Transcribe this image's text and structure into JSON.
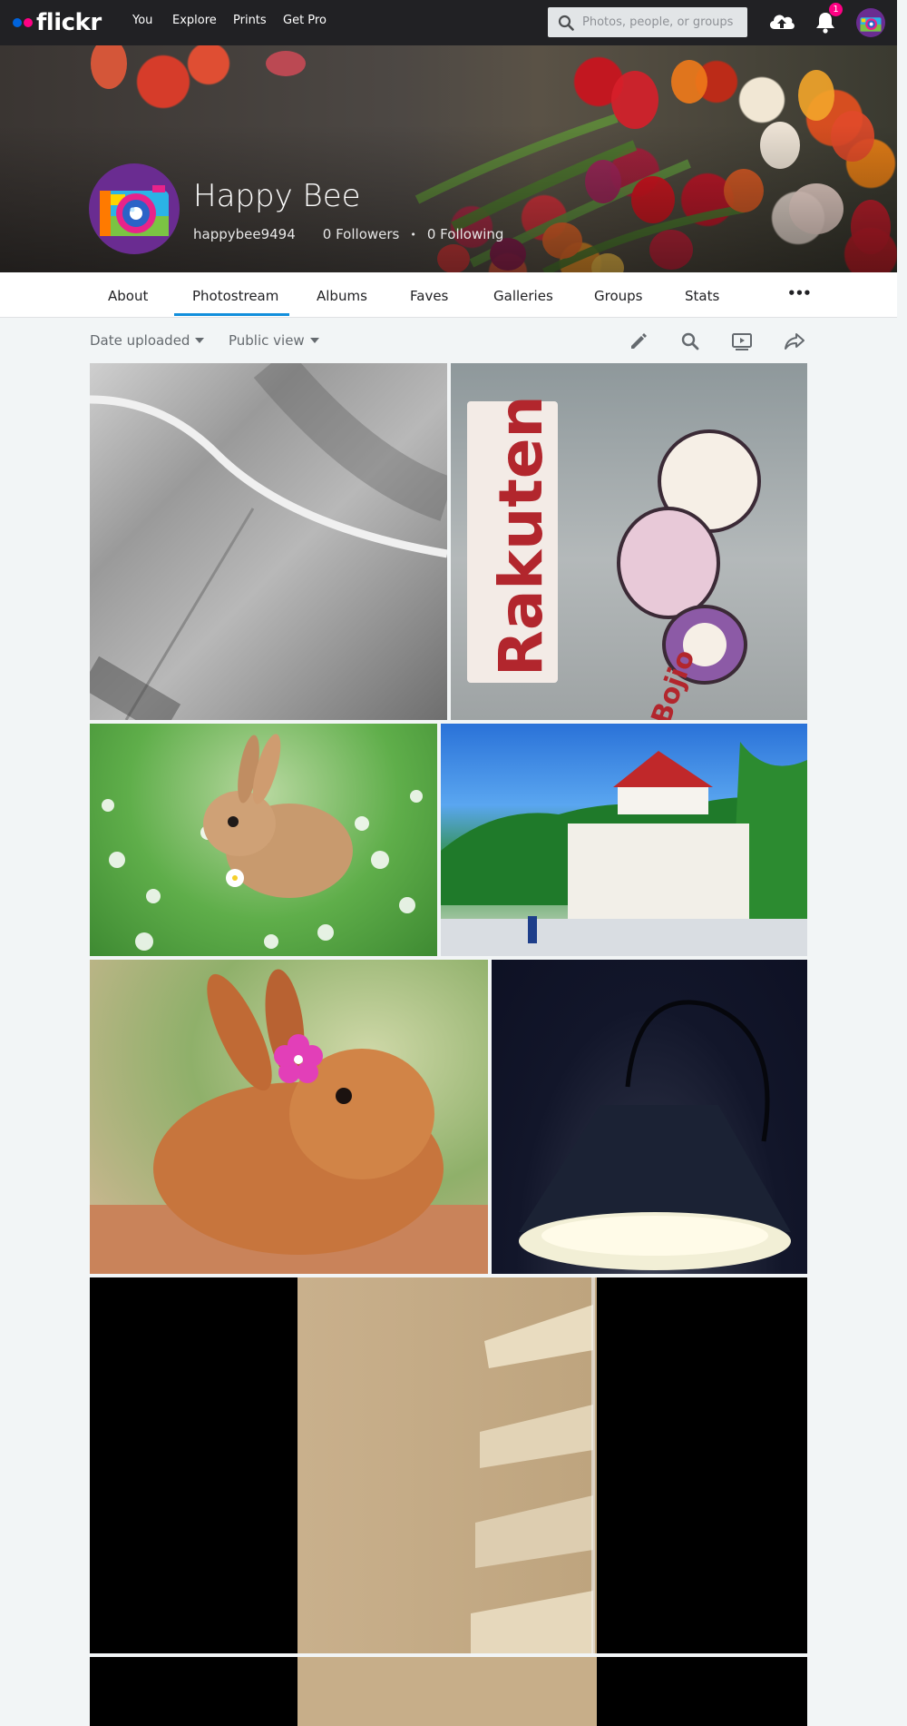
{
  "app": {
    "brand": "flickr",
    "brand_colors": {
      "blue": "#0063dc",
      "pink": "#ff0084"
    }
  },
  "topnav": {
    "links": [
      "You",
      "Explore",
      "Prints",
      "Get Pro"
    ],
    "search_placeholder": "Photos, people, or groups",
    "notification_count": "1",
    "icons": [
      "search-icon",
      "upload-cloud-icon",
      "bell-icon",
      "user-avatar"
    ]
  },
  "profile": {
    "name": "Happy Bee",
    "username": "happybee9494",
    "followers": "0 Followers",
    "separator": "•",
    "following": "0 Following"
  },
  "tabs": [
    {
      "label": "About"
    },
    {
      "label": "Photostream",
      "active": true
    },
    {
      "label": "Albums"
    },
    {
      "label": "Faves"
    },
    {
      "label": "Galleries"
    },
    {
      "label": "Groups"
    },
    {
      "label": "Stats"
    }
  ],
  "more_label": "•••",
  "toolbar": {
    "sort_label": "Date uploaded",
    "view_label": "Public view",
    "icons": [
      "edit-pencil-icon",
      "search-icon",
      "slideshow-icon",
      "share-icon"
    ]
  },
  "photos": [
    {
      "subject": "grayscale cable close-up"
    },
    {
      "subject": "Rakuten sticker",
      "text_visible": "Rakuten",
      "text_visible_2": "Bojio"
    },
    {
      "subject": "rabbit in daisies"
    },
    {
      "subject": "temple with red roof"
    },
    {
      "subject": "rabbit with pink flower"
    },
    {
      "subject": "desk lamp in dark"
    },
    {
      "subject": "wooden shelves"
    },
    {
      "subject": "wooden shelves"
    }
  ],
  "colors": {
    "accent": "#128fdc",
    "nav_bg": "#212124",
    "page_bg": "#f2f5f6",
    "badge": "#ff0084"
  }
}
